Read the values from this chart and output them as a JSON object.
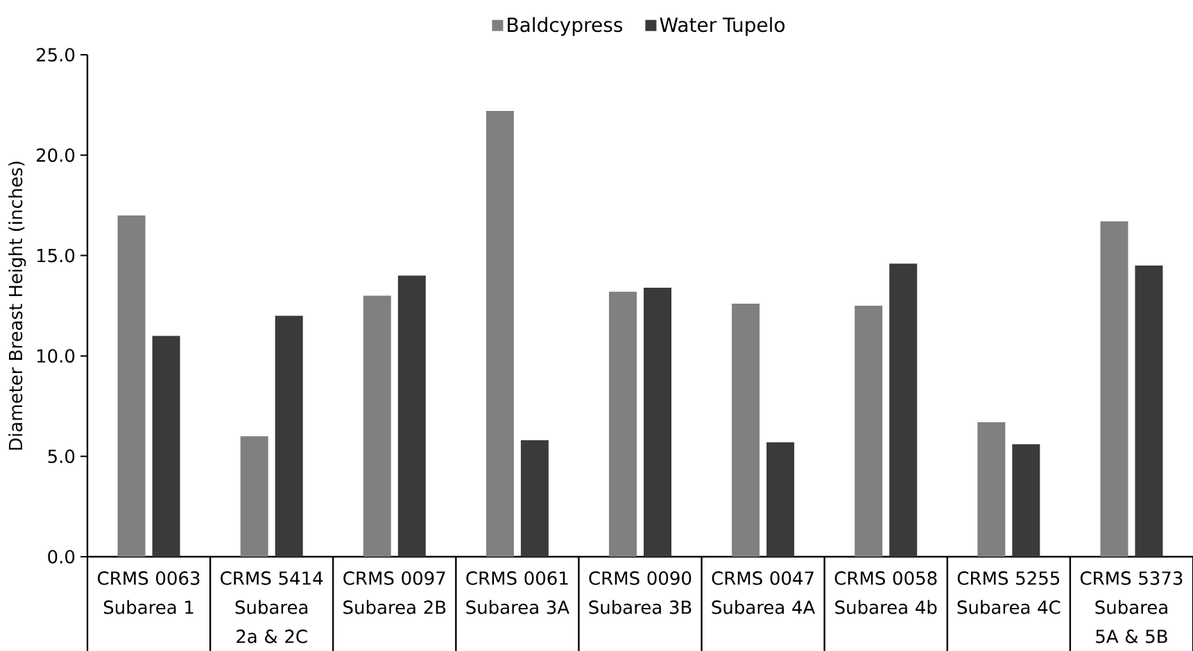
{
  "chart_data": {
    "type": "bar",
    "ylabel": "Diameter Breast Height (inches)",
    "categories": [
      "CRMS 0063 Subarea 1",
      "CRMS 5414 Subarea 2a & 2C",
      "CRMS 0097 Subarea 2B",
      "CRMS 0061 Subarea 3A",
      "CRMS 0090 Subarea 3B",
      "CRMS 0047 Subarea 4A",
      "CRMS 0058 Subarea 4b",
      "CRMS 5255 Subarea 4C",
      "CRMS 5373 Subarea 5A & 5B"
    ],
    "series": [
      {
        "name": "Baldcypress",
        "color": "#808080",
        "values": [
          17.0,
          6.0,
          13.0,
          22.2,
          13.2,
          12.6,
          12.5,
          6.7,
          16.7
        ]
      },
      {
        "name": "Water Tupelo",
        "color": "#3a3a3a",
        "values": [
          11.0,
          12.0,
          14.0,
          5.8,
          13.4,
          5.7,
          14.6,
          5.6,
          14.5
        ]
      }
    ],
    "ylim": [
      0,
      25
    ],
    "yticks": [
      {
        "value": 0,
        "label": "0.0"
      },
      {
        "value": 5,
        "label": "5.0"
      },
      {
        "value": 10,
        "label": "10.0"
      },
      {
        "value": 15,
        "label": "15.0"
      },
      {
        "value": 20,
        "label": "20.0"
      },
      {
        "value": 25,
        "label": "25.0"
      }
    ],
    "legend": "top",
    "grid": false
  }
}
